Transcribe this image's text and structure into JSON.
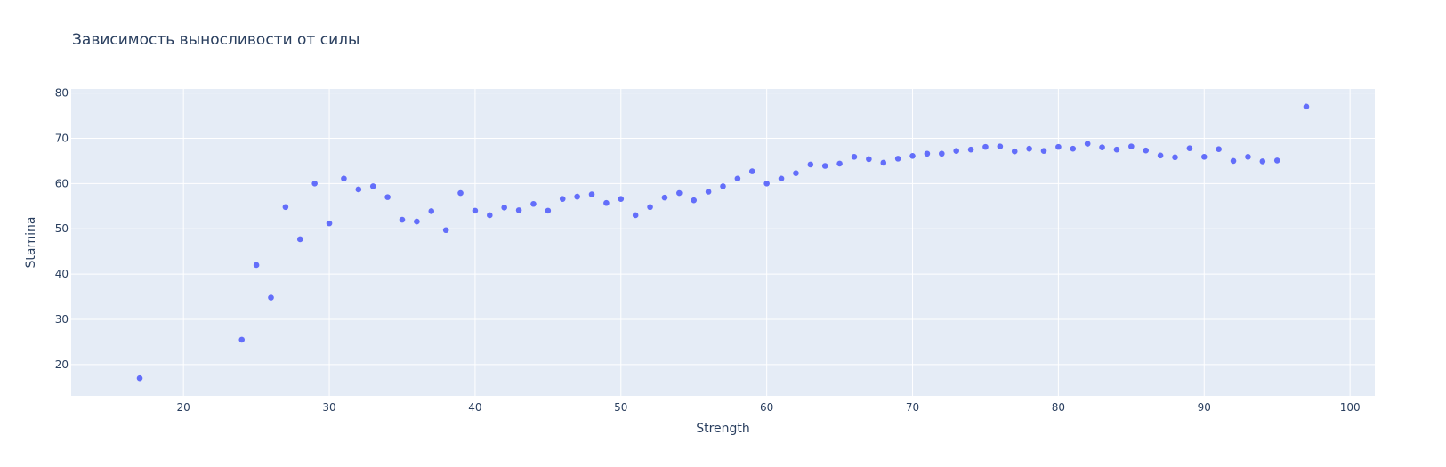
{
  "chart_data": {
    "type": "scatter",
    "title": "Зависимость выносливости от силы",
    "xlabel": "Strength",
    "ylabel": "Stamina",
    "xlim": [
      12.3,
      101.7
    ],
    "ylim": [
      13.1,
      80.9
    ],
    "xticks": [
      20,
      30,
      40,
      50,
      60,
      70,
      80,
      90,
      100
    ],
    "yticks": [
      20,
      30,
      40,
      50,
      60,
      70,
      80
    ],
    "grid": true,
    "legend": "none",
    "colors": {
      "marker": "#636efa",
      "plot_background": "#e5ecf6",
      "gridline": "#ffffff",
      "text": "#2a3f5f"
    },
    "series": [
      {
        "x": [
          17,
          24,
          25,
          26,
          27,
          28,
          29,
          30,
          31,
          32,
          33,
          34,
          35,
          36,
          37,
          38,
          39,
          40,
          41,
          42,
          43,
          44,
          45,
          46,
          47,
          48,
          49,
          50,
          51,
          52,
          53,
          54,
          55,
          56,
          57,
          58,
          59,
          60,
          61,
          62,
          63,
          64,
          65,
          66,
          67,
          68,
          69,
          70,
          71,
          72,
          73,
          74,
          75,
          76,
          77,
          78,
          79,
          80,
          81,
          82,
          83,
          84,
          85,
          86,
          87,
          88,
          89,
          90,
          91,
          92,
          93,
          94,
          95,
          97
        ],
        "y": [
          17.0,
          25.5,
          42.0,
          34.8,
          54.8,
          47.7,
          60.0,
          51.2,
          61.1,
          58.7,
          59.4,
          57.0,
          52.0,
          51.6,
          53.9,
          49.7,
          57.9,
          54.0,
          53.0,
          54.7,
          54.1,
          55.5,
          54.0,
          56.6,
          57.1,
          57.6,
          55.7,
          56.6,
          53.0,
          54.8,
          56.9,
          57.9,
          56.3,
          58.2,
          59.4,
          61.1,
          62.7,
          60.0,
          61.1,
          62.3,
          64.2,
          63.9,
          64.4,
          65.9,
          65.4,
          64.6,
          65.5,
          66.1,
          66.6,
          66.6,
          67.2,
          67.5,
          68.1,
          68.2,
          67.1,
          67.7,
          67.2,
          68.1,
          67.7,
          68.8,
          68.0,
          67.5,
          68.2,
          67.3,
          66.2,
          65.8,
          67.8,
          65.9,
          67.6,
          65.0,
          65.9,
          64.9,
          65.1,
          77.0
        ]
      }
    ]
  }
}
